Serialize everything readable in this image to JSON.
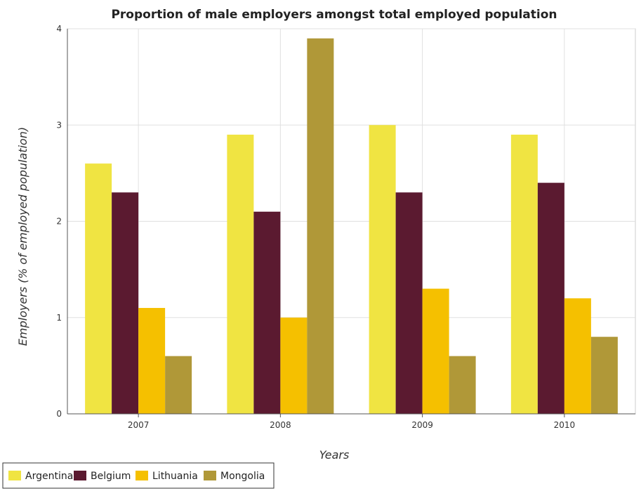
{
  "chart_data": {
    "type": "bar",
    "title": "Proportion of male employers amongst total employed population",
    "xlabel": "Years",
    "ylabel": "Employers (% of employed population)",
    "categories": [
      "2007",
      "2008",
      "2009",
      "2010"
    ],
    "ylim": [
      0,
      4
    ],
    "yticks": [
      0,
      1,
      2,
      3,
      4
    ],
    "grid": true,
    "legend_position": "bottom-left",
    "series": [
      {
        "name": "Argentina",
        "color": "#f0e442",
        "values": [
          2.6,
          2.9,
          3.0,
          2.9
        ]
      },
      {
        "name": "Belgium",
        "color": "#5b1a30",
        "values": [
          2.3,
          2.1,
          2.3,
          2.4
        ]
      },
      {
        "name": "Lithuania",
        "color": "#f5c000",
        "values": [
          1.1,
          1.0,
          1.3,
          1.2
        ]
      },
      {
        "name": "Mongolia",
        "color": "#b09838",
        "values": [
          0.6,
          3.9,
          0.6,
          0.8
        ]
      }
    ]
  }
}
